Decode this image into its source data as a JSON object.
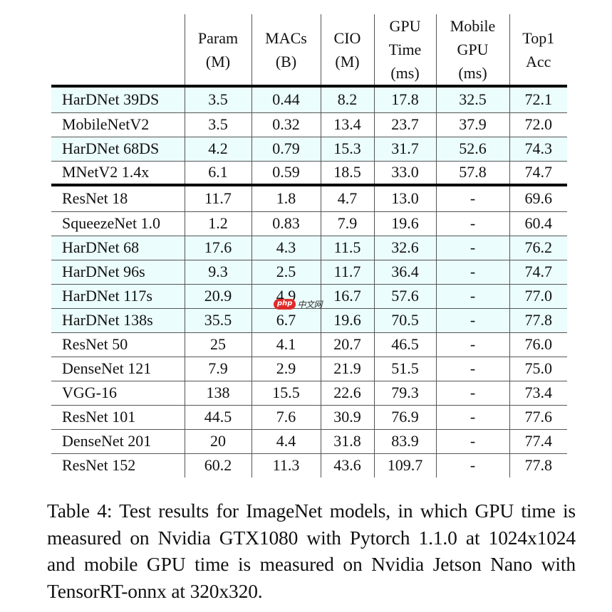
{
  "table": {
    "columns": [
      {
        "lines": [
          ""
        ]
      },
      {
        "lines": [
          "Param",
          "(M)"
        ]
      },
      {
        "lines": [
          "MACs",
          "(B)"
        ]
      },
      {
        "lines": [
          "CIO",
          "(M)"
        ]
      },
      {
        "lines": [
          "GPU",
          "Time",
          "(ms)"
        ]
      },
      {
        "lines": [
          "Mobile",
          "GPU",
          "(ms)"
        ]
      },
      {
        "lines": [
          "Top1",
          "Acc"
        ]
      }
    ],
    "groups": [
      {
        "rows": [
          {
            "highlight": true,
            "cells": [
              "HarDNet 39DS",
              "3.5",
              "0.44",
              "8.2",
              "17.8",
              "32.5",
              "72.1"
            ]
          },
          {
            "highlight": false,
            "cells": [
              "MobileNetV2",
              "3.5",
              "0.32",
              "13.4",
              "23.7",
              "37.9",
              "72.0"
            ]
          },
          {
            "highlight": true,
            "cells": [
              "HarDNet 68DS",
              "4.2",
              "0.79",
              "15.3",
              "31.7",
              "52.6",
              "74.3"
            ]
          },
          {
            "highlight": false,
            "cells": [
              "MNetV2 1.4x",
              "6.1",
              "0.59",
              "18.5",
              "33.0",
              "57.8",
              "74.7"
            ]
          }
        ]
      },
      {
        "rows": [
          {
            "highlight": false,
            "cells": [
              "ResNet 18",
              "11.7",
              "1.8",
              "4.7",
              "13.0",
              "-",
              "69.6"
            ]
          },
          {
            "highlight": false,
            "cells": [
              "SqueezeNet 1.0",
              "1.2",
              "0.83",
              "7.9",
              "19.6",
              "-",
              "60.4"
            ]
          },
          {
            "highlight": true,
            "cells": [
              "HarDNet 68",
              "17.6",
              "4.3",
              "11.5",
              "32.6",
              "-",
              "76.2"
            ]
          },
          {
            "highlight": true,
            "cells": [
              "HarDNet 96s",
              "9.3",
              "2.5",
              "11.7",
              "36.4",
              "-",
              "74.7"
            ]
          },
          {
            "highlight": true,
            "cells": [
              "HarDNet 117s",
              "20.9",
              "4.9",
              "16.7",
              "57.6",
              "-",
              "77.0"
            ]
          },
          {
            "highlight": true,
            "cells": [
              "HarDNet 138s",
              "35.5",
              "6.7",
              "19.6",
              "70.5",
              "-",
              "77.8"
            ]
          },
          {
            "highlight": false,
            "cells": [
              "ResNet 50",
              "25",
              "4.1",
              "20.7",
              "46.5",
              "-",
              "76.0"
            ]
          },
          {
            "highlight": false,
            "cells": [
              "DenseNet 121",
              "7.9",
              "2.9",
              "21.9",
              "51.5",
              "-",
              "75.0"
            ]
          },
          {
            "highlight": false,
            "cells": [
              "VGG-16",
              "138",
              "15.5",
              "22.6",
              "79.3",
              "-",
              "73.4"
            ]
          },
          {
            "highlight": false,
            "cells": [
              "ResNet 101",
              "44.5",
              "7.6",
              "30.9",
              "76.9",
              "-",
              "77.6"
            ]
          },
          {
            "highlight": false,
            "cells": [
              "DenseNet 201",
              "20",
              "4.4",
              "31.8",
              "83.9",
              "-",
              "77.4"
            ]
          },
          {
            "highlight": false,
            "cells": [
              "ResNet 152",
              "60.2",
              "11.3",
              "43.6",
              "109.7",
              "-",
              "77.8"
            ]
          }
        ]
      }
    ],
    "highlight_color": "#ebfdfd"
  },
  "caption": {
    "text": "Table 4: Test results for ImageNet models, in which GPU time is measured on Nvidia GTX1080 with Pytorch 1.1.0 at 1024x1024 and mobile GPU time is measured on Nvidia Jetson Nano with TensorRT-onnx at 320x320."
  },
  "watermark": {
    "badge": "php",
    "text": "中文网"
  }
}
